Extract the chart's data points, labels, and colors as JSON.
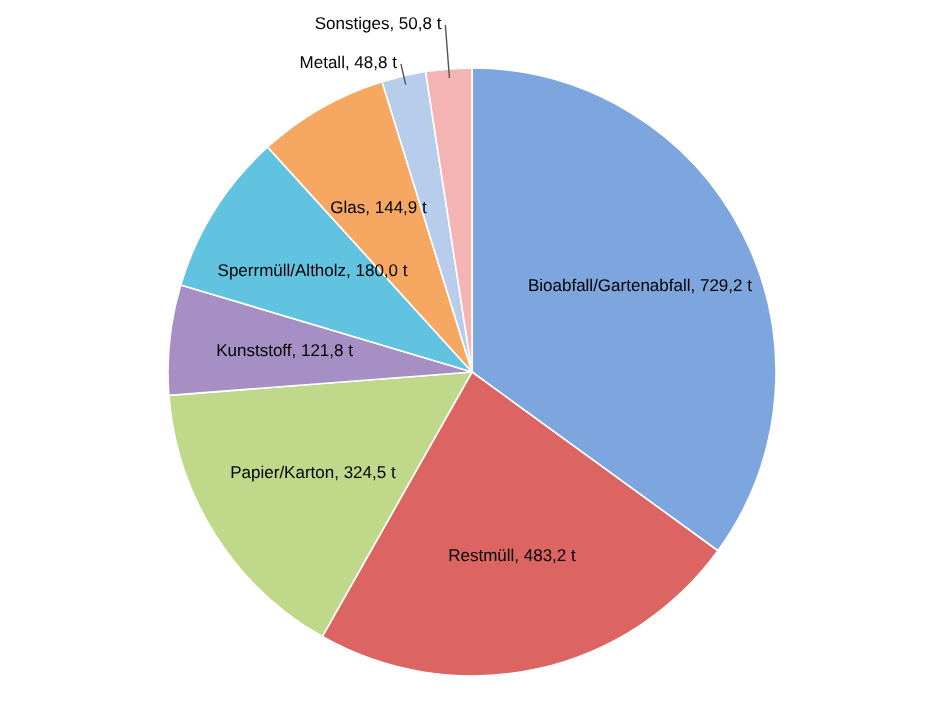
{
  "chart_data": {
    "type": "pie",
    "categories": [
      "Bioabfall/Gartenabfall",
      "Restmüll",
      "Papier/Karton",
      "Kunststoff",
      "Sperrmüll/Altholz",
      "Glas",
      "Metall",
      "Sonstiges"
    ],
    "values": [
      729.2,
      483.2,
      324.5,
      121.8,
      180.0,
      144.9,
      48.8,
      50.8
    ],
    "value_labels": [
      "729,2 t",
      "483,2 t",
      "324,5 t",
      "121,8 t",
      "180,0 t",
      "144,9 t",
      "48,8 t",
      "50,8 t"
    ],
    "colors": [
      "#7ea6de",
      "#dc6462",
      "#c0d88a",
      "#a68fc4",
      "#62c3e0",
      "#f6a862",
      "#b8cdeb",
      "#f4b4b4"
    ]
  }
}
